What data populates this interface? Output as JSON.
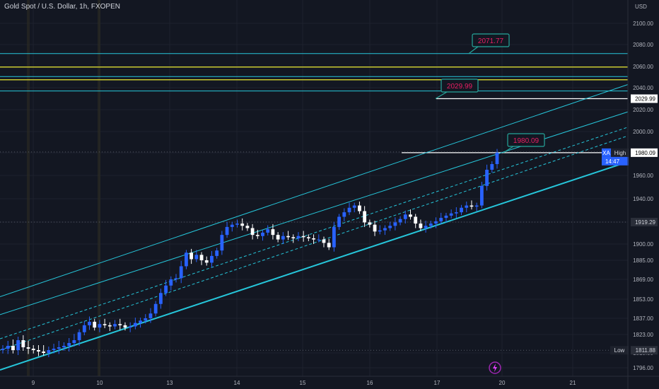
{
  "header": {
    "title": "Gold Spot / U.S. Dollar, 1h, FXOPEN",
    "currency": "USD"
  },
  "colors": {
    "background": "#131722",
    "grid": "#1e222d",
    "candle_up": "#2962ff",
    "candle_down": "#ffffff",
    "channel": "#26c6da",
    "hline_yellow": "#c8c82e",
    "label_text": "#e91e63",
    "label_bg": "#131722",
    "label_border": "#26a69a",
    "axis_text": "#b2b5be"
  },
  "chart_data": {
    "type": "candlestick",
    "symbol": "XAUUSD",
    "timeframe": "1h",
    "x_ticks": [
      "9",
      "10",
      "13",
      "14",
      "15",
      "16",
      "17",
      "20",
      "21"
    ],
    "y_ticks": [
      2100.0,
      2080.0,
      2060.0,
      2040.0,
      2020.0,
      2000.0,
      1980.0,
      1960.0,
      1940.0,
      1919.29,
      1900.0,
      1885.0,
      1869.0,
      1853.0,
      1837.0,
      1823.0,
      1810.0,
      1796.0
    ],
    "y_range": [
      1790,
      2115
    ],
    "horizontal_lines": [
      {
        "price": 2071.77,
        "color": "channel"
      },
      {
        "price": 2059.5,
        "color": "yellow"
      },
      {
        "price": 2050.5,
        "color": "channel"
      },
      {
        "price": 2047.5,
        "color": "yellow"
      },
      {
        "price": 2037.0,
        "color": "channel"
      }
    ],
    "level_callouts": [
      "2071.77",
      "2029.99",
      "1980.09"
    ],
    "price_tags": [
      {
        "label": "2029.99",
        "style": "white"
      },
      {
        "label": "1980.09",
        "style": "white",
        "prefix": "XA",
        "note": "High",
        "countdown": "14:47"
      },
      {
        "label": "1919.29",
        "style": "dark"
      },
      {
        "label": "1811.88",
        "style": "dark",
        "note": "Low"
      }
    ],
    "candles_close": [
      1813,
      1815,
      1812,
      1819,
      1814,
      1813,
      1812,
      1811,
      1810,
      1812,
      1813,
      1814,
      1815,
      1817,
      1819,
      1825,
      1831,
      1834,
      1829,
      1832,
      1831,
      1830,
      1832,
      1831,
      1829,
      1830,
      1833,
      1835,
      1837,
      1841,
      1849,
      1858,
      1864,
      1869,
      1870,
      1880,
      1892,
      1886,
      1890,
      1885,
      1883,
      1889,
      1894,
      1908,
      1915,
      1917,
      1918,
      1916,
      1914,
      1908,
      1907,
      1910,
      1913,
      1908,
      1904,
      1907,
      1906,
      1905,
      1907,
      1906,
      1905,
      1904,
      1904,
      1901,
      1897,
      1915,
      1924,
      1928,
      1932,
      1934,
      1929,
      1919,
      1917,
      1911,
      1912,
      1914,
      1916,
      1919,
      1922,
      1926,
      1924,
      1918,
      1914,
      1916,
      1918,
      1920,
      1923,
      1925,
      1927,
      1928,
      1932,
      1934,
      1933,
      1934,
      1951,
      1965,
      1970,
      1980.09
    ]
  }
}
